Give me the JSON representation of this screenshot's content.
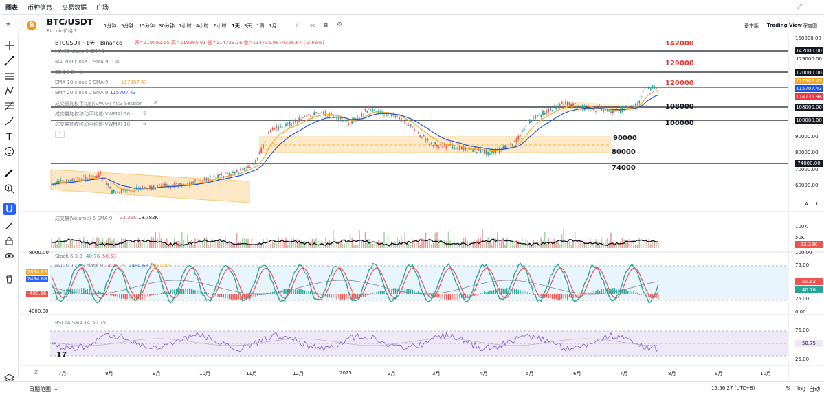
{
  "topnav": {
    "tabs": [
      "图表",
      "币种信息",
      "交易数据",
      "广场"
    ]
  },
  "symbol": {
    "name": "BTC/USDT",
    "subtitle": "Bitcoin价格",
    "caret": "▾"
  },
  "timeframes": [
    "1分钟",
    "5分钟",
    "15分钟",
    "30分钟",
    "1小时",
    "4小时",
    "6小时",
    "1天",
    "3天",
    "1周",
    "1月"
  ],
  "active_timeframe": "1天",
  "views": [
    "基本版",
    "Trading View",
    "深度图"
  ],
  "header": {
    "title": "BTCUSDT · 1天 · Binance",
    "ohlc": "开=119092.65 高=119395.81 低=114723.16 收=114735.98 -4356.67 (-3.66%)"
  },
  "indicators": [
    {
      "label": "MA 50 close 0 SMA 9"
    },
    {
      "label": "MA 200 close 0 SMA 9"
    },
    {
      "label": "BB 20 2"
    },
    {
      "label": "EMA 10 close 0 SMA 9",
      "value": "117387.43"
    },
    {
      "label": "EMA 20 close 0 SMA 9",
      "value": "115707.43"
    },
    {
      "label": "成交量加权平均价(VWAP) hlc3 Session"
    },
    {
      "label": "成交量加权移动平均值(VWMA) 20"
    },
    {
      "label": "成交量加权移动平均值(VWMA) 10"
    }
  ],
  "levels": [
    {
      "text": "142000",
      "color": "#e53935"
    },
    {
      "text": "129000",
      "color": "#e53935"
    },
    {
      "text": "120000",
      "color": "#e53935"
    },
    {
      "text": "108000",
      "color": "#131722"
    },
    {
      "text": "100000",
      "color": "#131722"
    },
    {
      "text": "90000",
      "color": "#131722"
    },
    {
      "text": "80000",
      "color": "#131722"
    },
    {
      "text": "74000",
      "color": "#131722"
    }
  ],
  "price_axis": [
    "150000.00",
    "142000.00",
    "129000.00",
    "120000.00",
    "108000.00",
    "100000.00",
    "90000.00",
    "80000.00",
    "74000.00",
    "70000.00",
    "60000.00"
  ],
  "price_tags": [
    {
      "text": "117387.43",
      "color": "#f5a623"
    },
    {
      "text": "115707.43",
      "color": "#1e53e5"
    },
    {
      "text": "114735.98",
      "color": "#f23645"
    }
  ],
  "scale_buttons": [
    "A",
    "L"
  ],
  "volume": {
    "label": "成交量(Volume) 5 SMA 9",
    "v1": "23.35K",
    "v2": "18.782K",
    "axis": "100K",
    "axis2": "50K",
    "tag": "23.35K"
  },
  "stoch": {
    "label": "Stoch 6 3 3",
    "v1": "40.76",
    "v2": "50.53",
    "axis": [
      "100.00",
      "75.00",
      "50.00",
      "25.00",
      "0.00"
    ],
    "tag1": "50.53",
    "tag2": "40.76"
  },
  "macd": {
    "label": "MACD 12 26 close 9",
    "v1": "-400.16",
    "v2": "2484.68",
    "v3": "2884.85",
    "left_axis": [
      "8000.00",
      "-4000.00"
    ],
    "tags": [
      "2884.85",
      "2484.68",
      "-400.16"
    ]
  },
  "rsi": {
    "label": "RSI 14 SMA 14",
    "value": "50.75",
    "axis": [
      "75.00",
      "50.00",
      "25.00"
    ],
    "tag": "50.75"
  },
  "months": [
    "7月",
    "8月",
    "9月",
    "10月",
    "11月",
    "12月",
    "2025",
    "2月",
    "3月",
    "4月",
    "5月",
    "6月",
    "7月",
    "8月",
    "9月",
    "10月"
  ],
  "bottombar": {
    "range": "日期范围",
    "time": "15:56:27 (UTC+8)",
    "pct": "%",
    "log": "log",
    "auto": "自动"
  },
  "colors": {
    "up": "#26a69a",
    "down": "#ef5350",
    "ema10": "#f5a623",
    "ema20": "#1e53e5",
    "channel": "#fdd9a0",
    "rsi_band": "#ede7f6",
    "stoch_band": "#e3f2fd"
  }
}
